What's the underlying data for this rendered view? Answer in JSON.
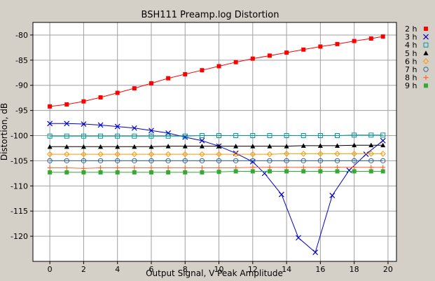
{
  "chart_data": {
    "type": "line",
    "title": "BSH111 Preamp.log Distortion",
    "xlabel": "Output Signal, V Peak Amplitude",
    "ylabel": "Distortion, dB",
    "xlim": [
      -1,
      20.5
    ],
    "ylim": [
      -125,
      -77.5
    ],
    "xticks": [
      0,
      2,
      4,
      6,
      8,
      10,
      12,
      14,
      16,
      18,
      20
    ],
    "yticks": [
      -80,
      -85,
      -90,
      -95,
      -100,
      -105,
      -110,
      -115,
      -120
    ],
    "grid": true,
    "legend_position": "right",
    "series": [
      {
        "name": "2 h",
        "color": "#ff0000",
        "marker": "filled-square",
        "x": [
          0,
          1,
          2,
          3,
          4,
          5,
          6,
          7,
          8,
          9,
          10,
          11,
          12,
          13,
          14,
          15,
          16,
          17,
          18,
          19,
          19.7
        ],
        "y": [
          -94.2,
          -93.8,
          -93.2,
          -92.4,
          -91.5,
          -90.6,
          -89.6,
          -88.6,
          -87.8,
          -87.0,
          -86.2,
          -85.4,
          -84.7,
          -84.1,
          -83.5,
          -82.9,
          -82.3,
          -81.8,
          -81.2,
          -80.7,
          -80.3
        ]
      },
      {
        "name": "3 h",
        "color": "#0000cc",
        "marker": "x",
        "x": [
          0,
          1,
          2,
          3,
          4,
          5,
          6,
          7,
          8,
          9,
          10,
          11,
          12,
          12.7,
          13.7,
          14.7,
          15.7,
          16.7,
          17.7,
          18.7,
          19.7
        ],
        "y": [
          -97.6,
          -97.6,
          -97.7,
          -97.9,
          -98.2,
          -98.5,
          -99.0,
          -99.5,
          -100.3,
          -101.0,
          -102.1,
          -103.5,
          -105.2,
          -107.5,
          -111.7,
          -120.3,
          -123.2,
          -111.9,
          -106.9,
          -103.7,
          -101.0
        ]
      },
      {
        "name": "4 h",
        "color": "#009999",
        "marker": "hollow-square",
        "x": [
          0,
          1,
          2,
          3,
          4,
          5,
          6,
          7,
          8,
          9,
          10,
          11,
          12,
          13,
          14,
          15,
          16,
          17,
          18,
          19,
          19.7
        ],
        "y": [
          -100.1,
          -100.1,
          -100.1,
          -100.1,
          -100.1,
          -100.1,
          -100.1,
          -100.1,
          -100.1,
          -100.0,
          -100.0,
          -100.0,
          -100.0,
          -100.0,
          -100.0,
          -100.0,
          -100.0,
          -100.0,
          -99.9,
          -99.9,
          -99.9
        ]
      },
      {
        "name": "5 h",
        "color": "#000000",
        "marker": "triangle",
        "x": [
          0,
          1,
          2,
          3,
          4,
          5,
          6,
          7,
          8,
          9,
          10,
          11,
          12,
          13,
          14,
          15,
          16,
          17,
          18,
          19,
          19.7
        ],
        "y": [
          -102.2,
          -102.2,
          -102.2,
          -102.2,
          -102.2,
          -102.2,
          -102.2,
          -102.1,
          -102.1,
          -102.1,
          -102.1,
          -102.1,
          -102.1,
          -102.1,
          -102.1,
          -102.0,
          -102.0,
          -102.0,
          -101.9,
          -101.9,
          -101.9
        ]
      },
      {
        "name": "6 h",
        "color": "#ff9900",
        "marker": "hollow-diamond",
        "x": [
          0,
          1,
          2,
          3,
          4,
          5,
          6,
          7,
          8,
          9,
          10,
          11,
          12,
          13,
          14,
          15,
          16,
          17,
          18,
          19,
          19.7
        ],
        "y": [
          -103.7,
          -103.7,
          -103.7,
          -103.7,
          -103.7,
          -103.7,
          -103.7,
          -103.7,
          -103.7,
          -103.7,
          -103.7,
          -103.7,
          -103.7,
          -103.7,
          -103.6,
          -103.6,
          -103.6,
          -103.6,
          -103.6,
          -103.6,
          -103.6
        ]
      },
      {
        "name": "7 h",
        "color": "#336699",
        "marker": "hollow-circle",
        "x": [
          0,
          1,
          2,
          3,
          4,
          5,
          6,
          7,
          8,
          9,
          10,
          11,
          12,
          13,
          14,
          15,
          16,
          17,
          18,
          19,
          19.7
        ],
        "y": [
          -105.0,
          -105.0,
          -105.0,
          -105.0,
          -105.0,
          -105.0,
          -105.0,
          -105.0,
          -105.0,
          -105.0,
          -105.0,
          -105.0,
          -105.0,
          -105.0,
          -105.0,
          -105.0,
          -105.0,
          -105.0,
          -105.0,
          -105.0,
          -105.0
        ]
      },
      {
        "name": "8 h",
        "color": "#ff6633",
        "marker": "plus",
        "x": [
          0,
          1,
          2,
          3,
          4,
          5,
          6,
          7,
          8,
          9,
          10,
          11,
          12,
          13,
          14,
          15,
          16,
          17,
          18,
          19,
          19.7
        ],
        "y": [
          -106.4,
          -106.4,
          -106.5,
          -106.4,
          -106.4,
          -106.4,
          -106.4,
          -106.4,
          -106.4,
          -106.4,
          -106.4,
          -106.4,
          -106.3,
          -106.3,
          -106.3,
          -106.3,
          -106.3,
          -106.3,
          -106.3,
          -106.3,
          -106.3
        ]
      },
      {
        "name": "9 h",
        "color": "#33aa33",
        "marker": "filled-square",
        "x": [
          0,
          1,
          2,
          3,
          4,
          5,
          6,
          7,
          8,
          9,
          10,
          11,
          12,
          13,
          14,
          15,
          16,
          17,
          18,
          19,
          19.7
        ],
        "y": [
          -107.3,
          -107.3,
          -107.3,
          -107.3,
          -107.3,
          -107.3,
          -107.3,
          -107.3,
          -107.3,
          -107.3,
          -107.2,
          -107.1,
          -107.1,
          -107.1,
          -107.1,
          -107.1,
          -107.1,
          -107.1,
          -107.1,
          -107.1,
          -107.1
        ]
      }
    ]
  }
}
